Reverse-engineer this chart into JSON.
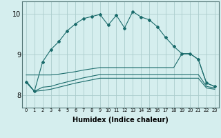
{
  "xlabel": "Humidex (Indice chaleur)",
  "x": [
    0,
    1,
    2,
    3,
    4,
    5,
    6,
    7,
    8,
    9,
    10,
    11,
    12,
    13,
    14,
    15,
    16,
    17,
    18,
    19,
    20,
    21,
    22,
    23
  ],
  "line_main": [
    8.32,
    8.1,
    8.82,
    9.12,
    9.32,
    9.58,
    9.75,
    9.88,
    9.93,
    9.98,
    9.72,
    9.96,
    9.65,
    10.05,
    9.92,
    9.85,
    9.68,
    9.42,
    9.2,
    9.02,
    9.02,
    8.88,
    8.3,
    8.22
  ],
  "line_upper": [
    8.5,
    8.5,
    8.5,
    8.5,
    8.52,
    8.55,
    8.58,
    8.62,
    8.65,
    8.68,
    8.68,
    8.68,
    8.68,
    8.68,
    8.68,
    8.68,
    8.68,
    8.68,
    8.68,
    9.02,
    9.02,
    8.88,
    8.3,
    8.22
  ],
  "line_mid": [
    8.35,
    8.1,
    8.2,
    8.22,
    8.28,
    8.33,
    8.38,
    8.43,
    8.47,
    8.51,
    8.51,
    8.51,
    8.51,
    8.51,
    8.51,
    8.51,
    8.51,
    8.51,
    8.51,
    8.51,
    8.51,
    8.51,
    8.22,
    8.18
  ],
  "line_lower": [
    8.32,
    8.1,
    8.12,
    8.15,
    8.2,
    8.25,
    8.3,
    8.34,
    8.38,
    8.42,
    8.42,
    8.42,
    8.42,
    8.42,
    8.42,
    8.42,
    8.42,
    8.42,
    8.42,
    8.42,
    8.42,
    8.42,
    8.18,
    8.15
  ],
  "ylim": [
    7.7,
    10.3
  ],
  "yticks": [
    8,
    9,
    10
  ],
  "bg_color": "#d5eeee",
  "line_color": "#1a6b6b",
  "grid_color": "#aacccc",
  "label_fontsize": 7
}
